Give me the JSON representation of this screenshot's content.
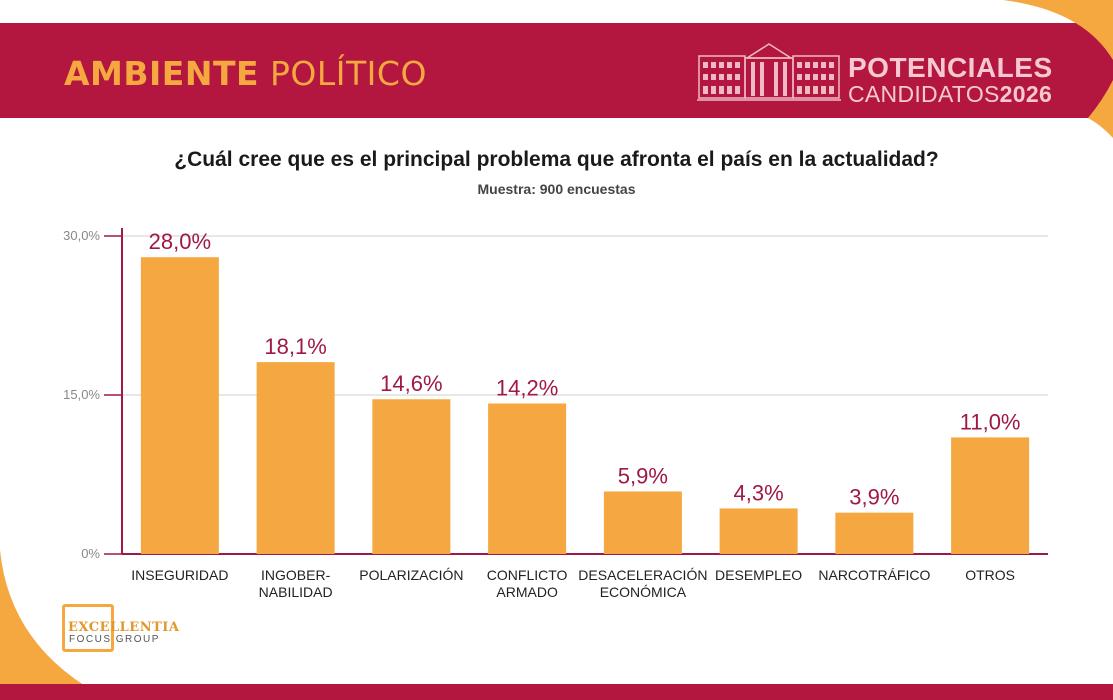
{
  "header": {
    "title_bold": "AMBIENTE",
    "title_light": "POLÍTICO",
    "brand_line1": "POTENCIALES",
    "brand_line2_light": "CANDIDATOS",
    "brand_line2_bold": "2026"
  },
  "question": "¿Cuál cree que es el principal problema que afronta el país en la actualidad?",
  "sample": "Muestra: 900 encuestas",
  "logo": {
    "line1": "EXCELLENTIA",
    "line2": "FOCUS GROUP"
  },
  "colors": {
    "banner": "#b3173f",
    "accent": "#f5a840",
    "bar": "#f5a742",
    "value_label": "#9e1848"
  },
  "chart_data": {
    "type": "bar",
    "categories": [
      [
        "INSEGURIDAD"
      ],
      [
        "INGOBER-",
        "NABILIDAD"
      ],
      [
        "POLARIZACIÓN"
      ],
      [
        "CONFLICTO",
        "ARMADO"
      ],
      [
        "DESACELERACIÓN",
        "ECONÓMICA"
      ],
      [
        "DESEMPLEO"
      ],
      [
        "NARCOTRÁFICO"
      ],
      [
        "OTROS"
      ]
    ],
    "values": [
      28.0,
      18.1,
      14.6,
      14.2,
      5.9,
      4.3,
      3.9,
      11.0
    ],
    "value_labels": [
      "28,0%",
      "18,1%",
      "14,6%",
      "14,2%",
      "5,9%",
      "4,3%",
      "3,9%",
      "11,0%"
    ],
    "yticks": [
      0,
      15,
      30
    ],
    "ytick_labels": [
      "0%",
      "15,0%",
      "30,0%"
    ],
    "ylim": [
      0,
      30
    ],
    "grid": true
  }
}
